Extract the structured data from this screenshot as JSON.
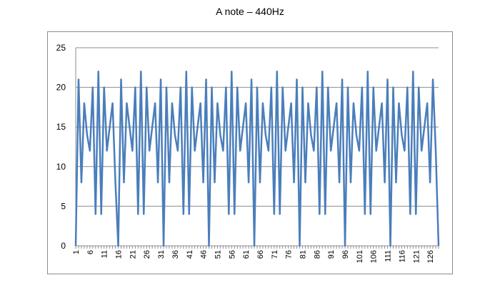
{
  "chart_data": {
    "type": "line",
    "title": "A note – 440Hz",
    "xlabel": "",
    "ylabel": "",
    "ylim": [
      0,
      25
    ],
    "yticks": [
      0,
      5,
      10,
      15,
      20,
      25
    ],
    "xticks": [
      1,
      6,
      11,
      16,
      21,
      26,
      31,
      36,
      41,
      46,
      51,
      56,
      61,
      66,
      71,
      76,
      81,
      86,
      91,
      96,
      101,
      106,
      111,
      116,
      121,
      126
    ],
    "grid": "horizontal",
    "legend": "none",
    "series": [
      {
        "color": "#4a7ebb",
        "x": [
          1,
          2,
          3,
          4,
          5,
          6,
          7,
          8,
          9,
          10,
          11,
          12,
          13,
          14,
          15,
          16,
          17,
          18,
          19,
          20,
          21,
          22,
          23,
          24,
          25,
          26,
          27,
          28,
          29,
          30,
          31,
          32,
          33,
          34,
          35,
          36,
          37,
          38,
          39,
          40,
          41,
          42,
          43,
          44,
          45,
          46,
          47,
          48,
          49,
          50,
          51,
          52,
          53,
          54,
          55,
          56,
          57,
          58,
          59,
          60,
          61,
          62,
          63,
          64,
          65,
          66,
          67,
          68,
          69,
          70,
          71,
          72,
          73,
          74,
          75,
          76,
          77,
          78,
          79,
          80,
          81,
          82,
          83,
          84,
          85,
          86,
          87,
          88,
          89,
          90,
          91,
          92,
          93,
          94,
          95,
          96,
          97,
          98,
          99,
          100,
          101,
          102,
          103,
          104,
          105,
          106,
          107,
          108,
          109,
          110,
          111,
          112,
          113,
          114,
          115,
          116,
          117,
          118,
          119,
          120,
          121,
          122,
          123,
          124,
          125,
          126,
          127,
          128,
          129
        ],
        "values": [
          0,
          21,
          8,
          18,
          14,
          12,
          20,
          4,
          22,
          4,
          20,
          12,
          15,
          18,
          8,
          0,
          21,
          8,
          18,
          15,
          12,
          20,
          4,
          22,
          4,
          20,
          12,
          15,
          18,
          8,
          21,
          0,
          20,
          8,
          18,
          14,
          12,
          20,
          4,
          22,
          4,
          20,
          12,
          15,
          18,
          8,
          21,
          0,
          20,
          8,
          18,
          14,
          12,
          20,
          4,
          22,
          4,
          20,
          12,
          15,
          18,
          8,
          21,
          0,
          20,
          8,
          18,
          14,
          12,
          20,
          4,
          22,
          4,
          20,
          12,
          15,
          18,
          8,
          21,
          0,
          20,
          8,
          18,
          14,
          12,
          20,
          4,
          22,
          4,
          20,
          12,
          15,
          18,
          8,
          21,
          0,
          20,
          8,
          18,
          14,
          12,
          20,
          4,
          22,
          4,
          20,
          12,
          15,
          18,
          8,
          21,
          0,
          20,
          8,
          18,
          14,
          12,
          20,
          4,
          22,
          4,
          20,
          12,
          15,
          18,
          8,
          21,
          12,
          0
        ]
      }
    ]
  }
}
